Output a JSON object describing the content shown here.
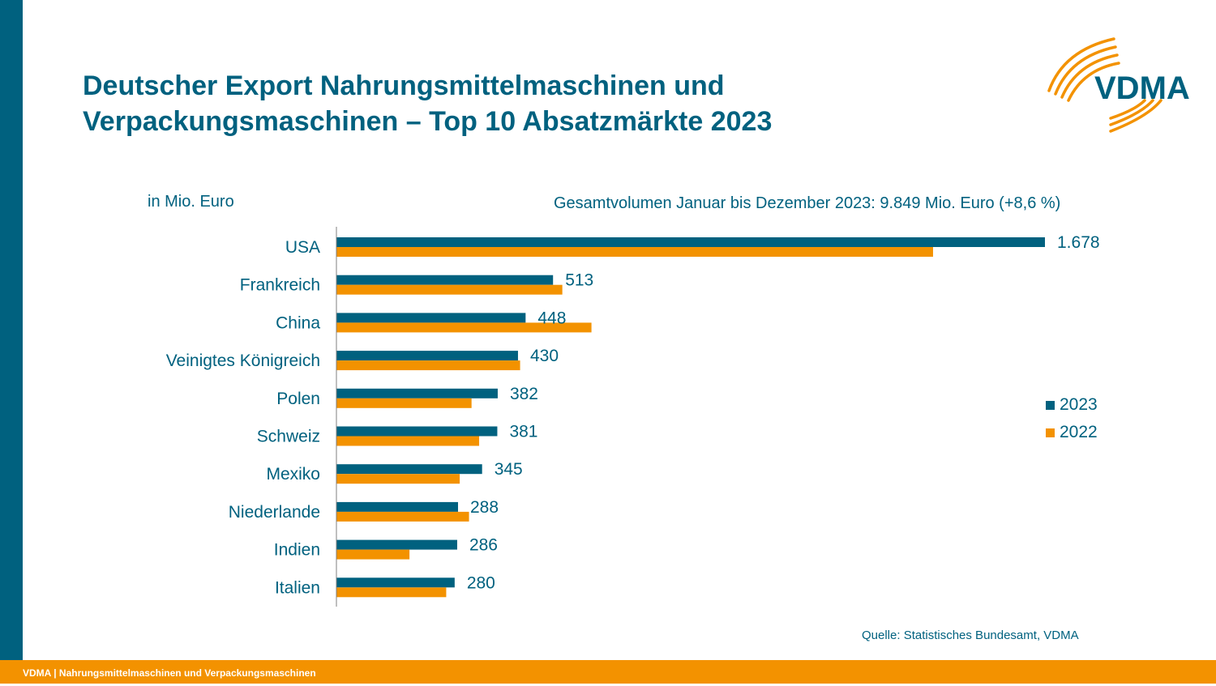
{
  "header": {
    "title_line1": "Deutscher Export Nahrungsmittelmaschinen und",
    "title_line2": "Verpackungsmaschinen – Top 10 Absatzmärkte 2023",
    "logo_text": "VDMA"
  },
  "footer": {
    "text": "VDMA | Nahrungsmittelmaschinen und Verpackungsmaschinen"
  },
  "source": "Quelle: Statistisches Bundesamt, VDMA",
  "colors": {
    "primary": "#00617f",
    "accent": "#f39200"
  },
  "chart_data": {
    "type": "bar",
    "orientation": "horizontal",
    "unit_label": "in Mio. Euro",
    "subtitle": "Gesamtvolumen Januar bis Dezember 2023: 9.849 Mio. Euro (+8,6 %)",
    "categories": [
      "USA",
      "Frankreich",
      "China",
      "Veinigtes Königreich",
      "Polen",
      "Schweiz",
      "Mexiko",
      "Niederlande",
      "Indien",
      "Italien"
    ],
    "series": [
      {
        "name": "2023",
        "color": "#00617f",
        "values": [
          1678,
          513,
          448,
          430,
          382,
          381,
          345,
          288,
          286,
          280
        ],
        "labels": [
          "1.678",
          "513",
          "448",
          "430",
          "382",
          "381",
          "345",
          "288",
          "286",
          "280"
        ]
      },
      {
        "name": "2022",
        "color": "#f39200",
        "values": [
          1413,
          535,
          604,
          435,
          320,
          338,
          292,
          314,
          173,
          260
        ]
      }
    ],
    "xlim": [
      0,
      1750
    ],
    "grid": false,
    "legend_position": "right"
  }
}
